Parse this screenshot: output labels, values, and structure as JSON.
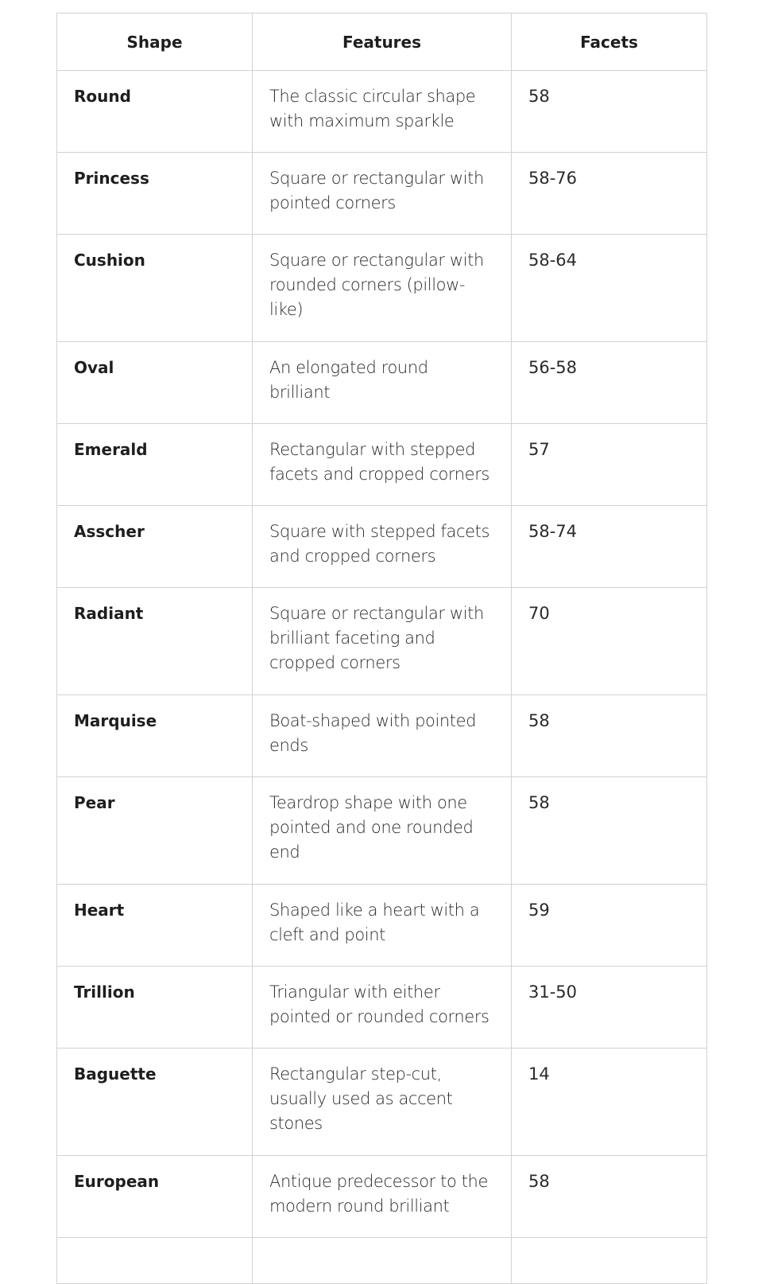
{
  "table": {
    "headers": [
      "Shape",
      "Features",
      "Facets"
    ],
    "rows": [
      {
        "shape": "Round",
        "features": "The classic circular shape\nwith maximum sparkle",
        "facets": "58"
      },
      {
        "shape": "Princess",
        "features": "Square or rectangular with\npointed corners",
        "facets": "58-76"
      },
      {
        "shape": "Cushion",
        "features": "Square or rectangular with\nrounded corners (pillow-\nlike)",
        "facets": "58-64"
      },
      {
        "shape": "Oval",
        "features": "An elongated round\nbrilliant",
        "facets": "56-58"
      },
      {
        "shape": "Emerald",
        "features": "Rectangular with stepped\nfacets and cropped corners",
        "facets": "57"
      },
      {
        "shape": "Asscher",
        "features": "Square with stepped facets\nand cropped corners",
        "facets": "58-74"
      },
      {
        "shape": "Radiant",
        "features": "Square or rectangular with\nbrilliant faceting and\ncropped corners",
        "facets": "70"
      },
      {
        "shape": "Marquise",
        "features": "Boat-shaped with pointed\nends",
        "facets": "58"
      },
      {
        "shape": "Pear",
        "features": "Teardrop shape with one\npointed and one rounded\nend",
        "facets": "58"
      },
      {
        "shape": "Heart",
        "features": "Shaped like a heart with a\ncleft and point",
        "facets": "59"
      },
      {
        "shape": "Trillion",
        "features": "Triangular with either\npointed or rounded corners",
        "facets": "31-50"
      },
      {
        "shape": "Baguette",
        "features": "Rectangular step-cut,\nusually used as accent\nstones",
        "facets": "14"
      },
      {
        "shape": "European",
        "features": "Antique predecessor to the\nmodern round brilliant",
        "facets": "58"
      }
    ]
  }
}
